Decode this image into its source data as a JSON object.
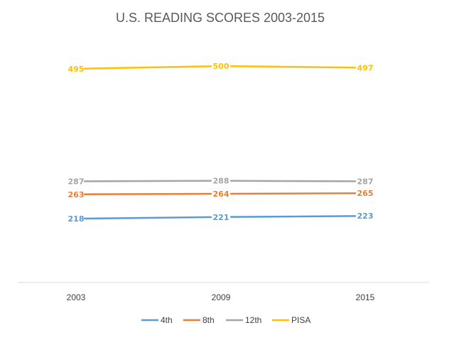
{
  "chart_data": {
    "type": "line",
    "title": "U.S. READING SCORES 2003-2015",
    "categories": [
      "2003",
      "2009",
      "2015"
    ],
    "series": [
      {
        "name": "4th",
        "color": "#5b9bd5",
        "values": [
          218,
          221,
          223
        ],
        "labels": [
          "218",
          "221",
          "223"
        ]
      },
      {
        "name": "8th",
        "color": "#ed7d31",
        "values": [
          263,
          264,
          265
        ],
        "labels": [
          "263",
          "264",
          "265"
        ]
      },
      {
        "name": "12th",
        "color": "#a5a5a5",
        "values": [
          287,
          288,
          287
        ],
        "labels": [
          "287",
          "288",
          "287"
        ]
      },
      {
        "name": "PISA",
        "color": "#ffc000",
        "values": [
          495,
          500,
          497
        ],
        "labels": [
          "495",
          "500",
          "497"
        ]
      }
    ],
    "ylim": [
      100,
      550
    ],
    "xlabel": "",
    "ylabel": "",
    "grid": false,
    "legend": "bottom"
  }
}
